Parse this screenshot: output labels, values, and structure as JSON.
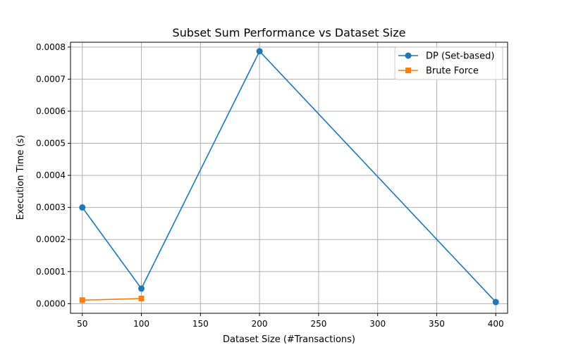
{
  "chart_data": {
    "type": "line",
    "title": "Subset Sum Performance vs Dataset Size",
    "xlabel": "Dataset Size (#Transactions)",
    "ylabel": "Execution Time (s)",
    "xlim": [
      40,
      410
    ],
    "ylim": [
      -3e-05,
      0.000815
    ],
    "xticks": [
      50,
      100,
      150,
      200,
      250,
      300,
      350,
      400
    ],
    "xtick_labels": [
      "50",
      "100",
      "150",
      "200",
      "250",
      "300",
      "350",
      "400"
    ],
    "yticks": [
      0,
      0.0001,
      0.0002,
      0.0003,
      0.0004,
      0.0005,
      0.0006,
      0.0007,
      0.0008
    ],
    "ytick_labels": [
      "0.0000",
      "0.0001",
      "0.0002",
      "0.0003",
      "0.0004",
      "0.0005",
      "0.0006",
      "0.0007",
      "0.0008"
    ],
    "grid": true,
    "legend_position": "top-right",
    "series": [
      {
        "name": "DP (Set-based)",
        "color": "#1f77b4",
        "marker": "circle",
        "x": [
          50,
          100,
          200,
          400
        ],
        "values": [
          0.0003,
          4.7e-05,
          0.000787,
          5e-06
        ]
      },
      {
        "name": "Brute Force",
        "color": "#ff7f0e",
        "marker": "square",
        "x": [
          50,
          100
        ],
        "values": [
          1.1e-05,
          1.6e-05
        ]
      }
    ]
  }
}
